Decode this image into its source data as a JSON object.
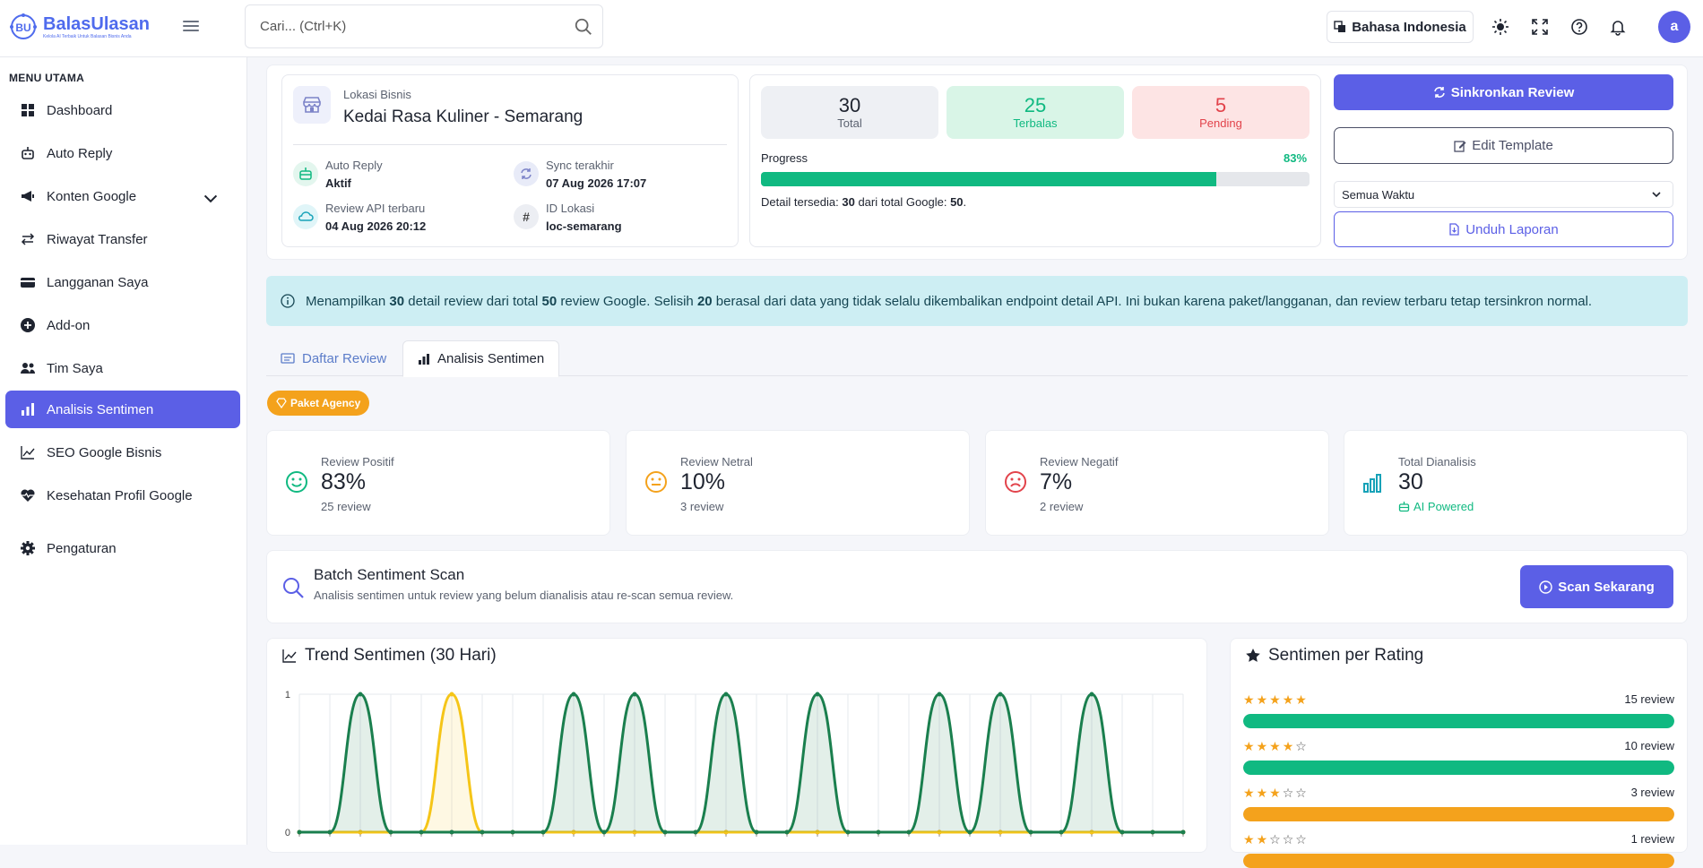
{
  "app": {
    "name": "BalasUlasan",
    "tagline": "Kelola AI Terbaik Untuk Balasan Bisnis Anda"
  },
  "header": {
    "search_placeholder": "Cari... (Ctrl+K)",
    "language": "Bahasa Indonesia",
    "avatar_initial": "a"
  },
  "sidebar": {
    "heading": "MENU UTAMA",
    "items": [
      {
        "label": "Dashboard",
        "icon": "grid-icon"
      },
      {
        "label": "Auto Reply",
        "icon": "robot-icon"
      },
      {
        "label": "Konten Google",
        "icon": "megaphone-icon"
      },
      {
        "label": "Riwayat Transfer",
        "icon": "arrows-icon"
      },
      {
        "label": "Langganan Saya",
        "icon": "card-icon"
      },
      {
        "label": "Add-on",
        "icon": "plus-circle-icon"
      },
      {
        "label": "Tim Saya",
        "icon": "people-icon"
      },
      {
        "label": "Analisis Sentimen",
        "icon": "bar-chart-icon"
      },
      {
        "label": "SEO Google Bisnis",
        "icon": "trend-icon"
      },
      {
        "label": "Kesehatan Profil Google",
        "icon": "heart-pulse-icon"
      },
      {
        "label": "Pengaturan",
        "icon": "gear-icon"
      }
    ]
  },
  "location": {
    "label": "Lokasi Bisnis",
    "name": "Kedai Rasa Kuliner - Semarang",
    "auto_reply_label": "Auto Reply",
    "auto_reply_value": "Aktif",
    "sync_label": "Sync terakhir",
    "sync_value": "07 Aug 2026 17:07",
    "api_label": "Review API terbaru",
    "api_value": "04 Aug 2026 20:12",
    "id_label": "ID Lokasi",
    "id_value": "loc-semarang"
  },
  "stats": {
    "total": "30",
    "total_label": "Total",
    "replied": "25",
    "replied_label": "Terbalas",
    "pending": "5",
    "pending_label": "Pending",
    "progress_label": "Progress",
    "progress_text": "83%",
    "progress_value": 83,
    "detail_prefix": "Detail tersedia:",
    "detail_count": "30",
    "detail_mid": "dari total Google:",
    "detail_total": "50",
    "detail_end": "."
  },
  "actions": {
    "sync": "Sinkronkan Review",
    "edit_template": "Edit Template",
    "period": "Semua Waktu",
    "download": "Unduh Laporan"
  },
  "info": {
    "p1": "Menampilkan",
    "n1": "30",
    "p2": "detail review dari total",
    "n2": "50",
    "p3": "review Google. Selisih",
    "n3": "20",
    "p4": "berasal dari data yang tidak selalu dikembalikan endpoint detail API. Ini bukan karena paket/langganan, dan review terbaru tetap tersinkron normal."
  },
  "tabs": {
    "list": "Daftar Review",
    "analysis": "Analisis Sentimen"
  },
  "badge": "Paket Agency",
  "sentiment": [
    {
      "title": "Review Positif",
      "value": "83%",
      "sub": "25 review",
      "color": "#10b981"
    },
    {
      "title": "Review Netral",
      "value": "10%",
      "sub": "3 review",
      "color": "#f4a21c"
    },
    {
      "title": "Review Negatif",
      "value": "7%",
      "sub": "2 review",
      "color": "#e2434b"
    },
    {
      "title": "Total Dianalisis",
      "value": "30",
      "sub": "AI Powered",
      "color": "#17a2b8"
    }
  ],
  "batch": {
    "title": "Batch Sentiment Scan",
    "desc": "Analisis sentimen untuk review yang belum dianalisis atau re-scan semua review.",
    "button": "Scan Sekarang"
  },
  "trend": {
    "title": "Trend Sentimen (30 Hari)"
  },
  "chart_data": {
    "type": "line",
    "title": "Trend Sentimen (30 Hari)",
    "y_ticks": [
      "1",
      "0"
    ],
    "ylim": [
      0,
      1
    ],
    "x": [
      1,
      2,
      3,
      4,
      5,
      6,
      7,
      8,
      9,
      10,
      11,
      12,
      13,
      14,
      15,
      16,
      17,
      18,
      19,
      20,
      21,
      22,
      23,
      24,
      25,
      26,
      27,
      28,
      29,
      30
    ],
    "series": [
      {
        "color": "#1a7f4e",
        "values": [
          0,
          0,
          1,
          0,
          0,
          0,
          0,
          0,
          0,
          1,
          0,
          1,
          0,
          0,
          1,
          0,
          0,
          1,
          0,
          0,
          0,
          1,
          0,
          1,
          0,
          0,
          1,
          0,
          0,
          0
        ]
      },
      {
        "color": "#f5c518",
        "values": [
          0,
          0,
          0,
          0,
          0,
          1,
          0,
          0,
          0,
          0,
          0,
          0,
          0,
          0,
          0,
          0,
          0,
          0,
          0,
          0,
          0,
          0,
          0,
          0,
          0,
          0,
          0,
          0,
          0,
          0
        ]
      },
      {
        "color": "#e2434b",
        "values": [
          0,
          0,
          0,
          0,
          0,
          0,
          0,
          0,
          0,
          0,
          0,
          0,
          0,
          0,
          0,
          0,
          0,
          0,
          0,
          0,
          0,
          0,
          0,
          0,
          0,
          0,
          0,
          0,
          0,
          0
        ]
      }
    ]
  },
  "rating": {
    "title": "Sentimen per Rating",
    "rows": [
      {
        "stars": 5,
        "count": "15 review",
        "fill": 1.0,
        "color": "#10b981"
      },
      {
        "stars": 4,
        "count": "10 review",
        "fill": 1.0,
        "color": "#10b981"
      },
      {
        "stars": 3,
        "count": "3 review",
        "fill": 1.0,
        "color": "#f4a21c"
      },
      {
        "stars": 2,
        "count": "1 review",
        "fill": 1.0,
        "color": "#f4a21c"
      }
    ]
  }
}
